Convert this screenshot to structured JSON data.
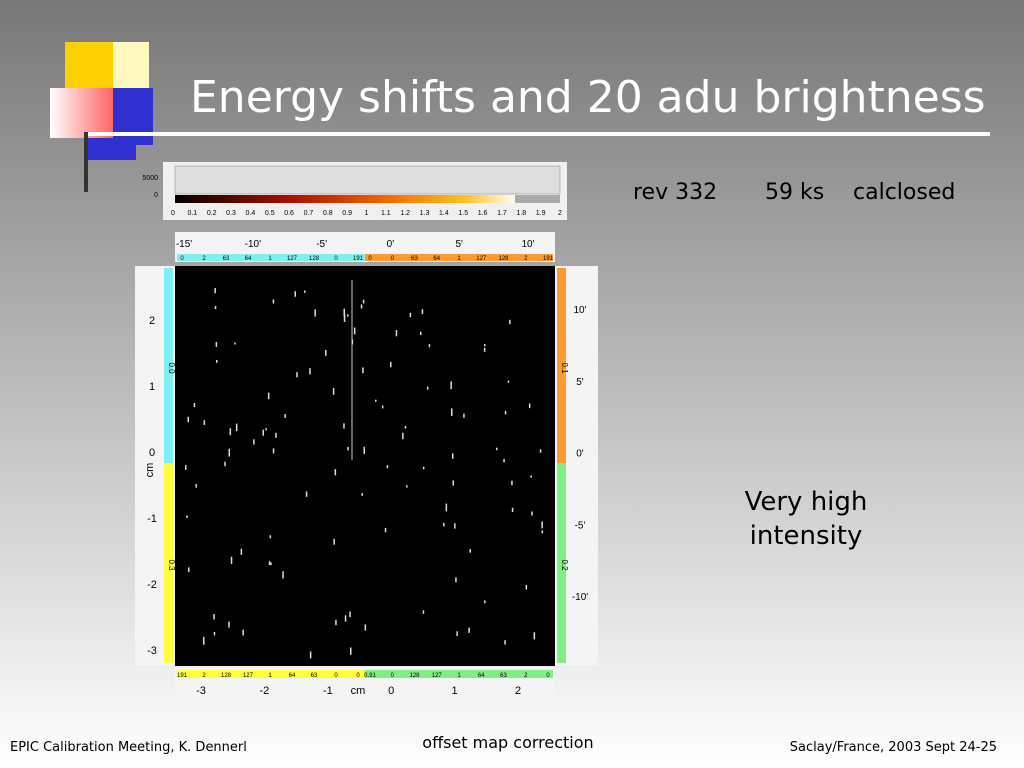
{
  "header": {
    "title": "Energy shifts and 20 adu brightness"
  },
  "info": {
    "rev": "rev 332",
    "exposure": "59 ks",
    "filter": "calclosed"
  },
  "note": [
    "Very high",
    "intensity"
  ],
  "figure": {
    "colorbar_counts": [
      "5000",
      "0"
    ],
    "colorbar_ticks": [
      "0",
      "0.1",
      "0.2",
      "0.3",
      "0.4",
      "0.5",
      "0.6",
      "0.7",
      "0.8",
      "0.9",
      "1",
      "1.1",
      "1.2",
      "1.3",
      "1.4",
      "1.5",
      "1.6",
      "1.7",
      "1.8",
      "1.9",
      "2"
    ],
    "top_ticks": [
      "-15'",
      "-10'",
      "-5'",
      "0'",
      "5'",
      "10'"
    ],
    "right_ticks": [
      "10'",
      "5'",
      "0'",
      "-5'",
      "-10'"
    ],
    "left_ticks": [
      "2",
      "1",
      "0",
      "-1",
      "-2",
      "-3"
    ],
    "bottom_ticks": [
      "-3",
      "-2",
      "-1",
      "0",
      "1",
      "2"
    ],
    "axis_unit": "cm",
    "top_strip_left": [
      "0",
      "2",
      "63",
      "64",
      "1",
      "127",
      "128",
      "0",
      "191"
    ],
    "top_strip_right": [
      "0",
      "0",
      "63",
      "64",
      "1",
      "127",
      "128",
      "2",
      "191"
    ],
    "bottom_strip_left": [
      "191",
      "2",
      "128",
      "127",
      "1",
      "64",
      "63",
      "0",
      "0"
    ],
    "bottom_strip_right": [
      "0.91",
      "0",
      "128",
      "127",
      "1",
      "64",
      "63",
      "2",
      "0"
    ],
    "left_strip": [
      "0.0",
      "0.3"
    ],
    "right_strip": [
      "0.1",
      "0.2"
    ]
  },
  "footer": {
    "left": "EPIC Calibration Meeting, K. Dennerl",
    "center": "offset map correction",
    "right": "Saclay/France, 2003 Sept 24-25"
  }
}
